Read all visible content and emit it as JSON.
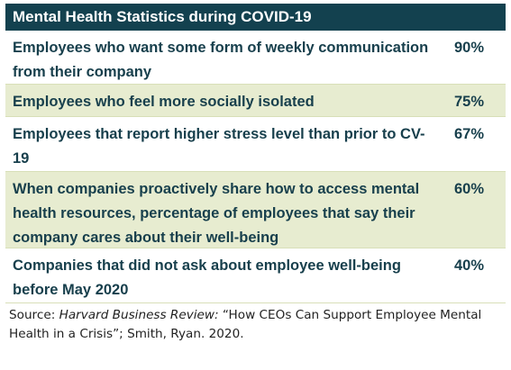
{
  "header": {
    "title": "Mental Health Statistics during COVID-19"
  },
  "rows": [
    {
      "label": "Employees who want some form of weekly communication from their company",
      "value": "90%",
      "shaded": false
    },
    {
      "label": "Employees who feel more socially isolated",
      "value": "75%",
      "shaded": true
    },
    {
      "label": "Employees that report higher stress level than prior to CV-19",
      "value": "67%",
      "shaded": false
    },
    {
      "label": "When companies proactively share how to access mental health resources, percentage of employees that say their company cares about their well-being",
      "value": "60%",
      "shaded": true
    },
    {
      "label": "Companies that did not ask about employee well-being before May 2020",
      "value": "40%",
      "shaded": false
    }
  ],
  "source": {
    "prefix": "Source: ",
    "publication": "Harvard Business Review:",
    "rest": " “How CEOs Can Support Employee Mental Health in a Crisis”; Smith, Ryan. 2020."
  },
  "colors": {
    "header_bg": "#13414f",
    "shaded_row_bg": "#e7ecd0",
    "text": "#173f4c"
  }
}
